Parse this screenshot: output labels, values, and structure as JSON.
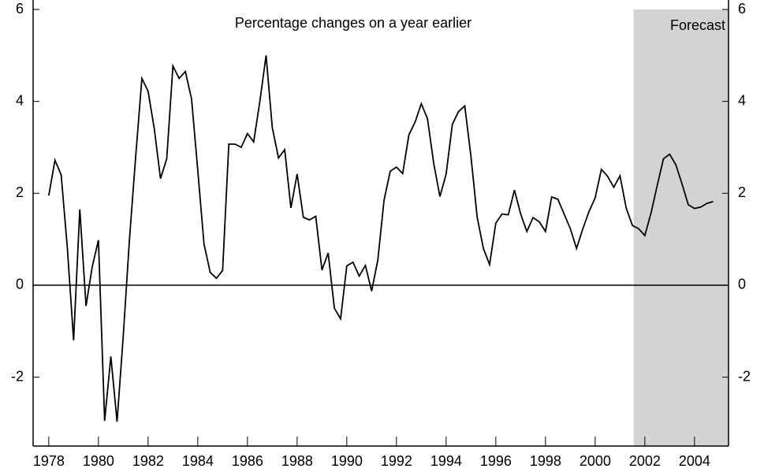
{
  "chart_data": {
    "type": "line",
    "annotation": "Percentage changes on a year earlier",
    "forecast_label": "Forecast",
    "forecast_start": 2001.55,
    "forecast_color": "#d3d3d3",
    "x": [
      1978,
      1978.25,
      1978.5,
      1978.75,
      1979,
      1979.25,
      1979.5,
      1979.75,
      1980,
      1980.25,
      1980.5,
      1980.75,
      1981,
      1981.25,
      1981.5,
      1981.75,
      1982,
      1982.25,
      1982.5,
      1982.75,
      1983,
      1983.25,
      1983.5,
      1983.75,
      1984,
      1984.25,
      1984.5,
      1984.75,
      1985,
      1985.25,
      1985.5,
      1985.75,
      1986,
      1986.25,
      1986.5,
      1986.75,
      1987,
      1987.25,
      1987.5,
      1987.75,
      1988,
      1988.25,
      1988.5,
      1988.75,
      1989,
      1989.25,
      1989.5,
      1989.75,
      1990,
      1990.25,
      1990.5,
      1990.75,
      1991,
      1991.25,
      1991.5,
      1991.75,
      1992,
      1992.25,
      1992.5,
      1992.75,
      1993,
      1993.25,
      1993.5,
      1993.75,
      1994,
      1994.25,
      1994.5,
      1994.75,
      1995,
      1995.25,
      1995.5,
      1995.75,
      1996,
      1996.25,
      1996.5,
      1996.75,
      1997,
      1997.25,
      1997.5,
      1997.75,
      1998,
      1998.25,
      1998.5,
      1998.75,
      1999,
      1999.25,
      1999.5,
      1999.75,
      2000,
      2000.25,
      2000.5,
      2000.75,
      2001,
      2001.25,
      2001.5,
      2001.75,
      2002,
      2002.25,
      2002.5,
      2002.75,
      2003,
      2003.25,
      2003.5,
      2003.75,
      2004,
      2004.25,
      2004.5,
      2004.75
    ],
    "series": [
      {
        "color": "#000000",
        "values": [
          1.95,
          2.72,
          2.4,
          0.8,
          -1.2,
          1.65,
          -0.45,
          0.4,
          0.98,
          -2.95,
          -1.55,
          -2.97,
          -1.1,
          1.0,
          2.8,
          4.5,
          4.22,
          3.4,
          2.32,
          2.75,
          4.77,
          4.5,
          4.65,
          4.05,
          2.5,
          0.9,
          0.28,
          0.15,
          0.32,
          3.07,
          3.07,
          3.0,
          3.3,
          3.12,
          4.0,
          5.0,
          3.43,
          2.77,
          2.95,
          1.68,
          2.42,
          1.48,
          1.42,
          1.5,
          0.33,
          0.7,
          -0.5,
          -0.73,
          0.42,
          0.5,
          0.2,
          0.43,
          -0.13,
          0.55,
          1.85,
          2.48,
          2.57,
          2.43,
          3.27,
          3.55,
          3.95,
          3.62,
          2.65,
          1.93,
          2.42,
          3.5,
          3.78,
          3.9,
          2.8,
          1.48,
          0.8,
          0.45,
          1.35,
          1.55,
          1.53,
          2.07,
          1.55,
          1.17,
          1.47,
          1.38,
          1.17,
          1.92,
          1.87,
          1.55,
          1.23,
          0.8,
          1.22,
          1.6,
          1.9,
          2.52,
          2.37,
          2.13,
          2.38,
          1.68,
          1.3,
          1.23,
          1.08,
          1.57,
          2.17,
          2.75,
          2.85,
          2.62,
          2.2,
          1.75,
          1.67,
          1.7,
          1.78,
          1.82
        ]
      }
    ],
    "xlim": [
      1977.37,
      2005.37
    ],
    "xticks": [
      1978,
      1980,
      1982,
      1984,
      1986,
      1988,
      1990,
      1992,
      1994,
      1996,
      1998,
      2000,
      2002,
      2004
    ],
    "ylim": [
      -3.5,
      6
    ],
    "yticks": [
      -2,
      0,
      2,
      4,
      6
    ]
  }
}
